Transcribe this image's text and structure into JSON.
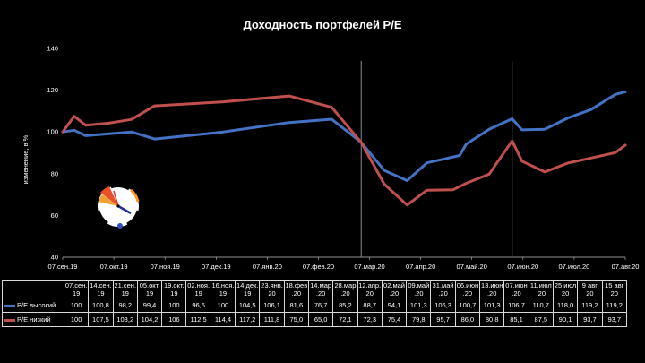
{
  "chart_data": {
    "type": "line",
    "title": "Доходность портфелей P/E",
    "ylabel": "изменение, в %",
    "xlabel": "",
    "ylim": [
      40,
      140
    ],
    "yticks": [
      40,
      60,
      80,
      100,
      120,
      140
    ],
    "grid": false,
    "x": [
      "07.сен.19",
      "14.сен.19",
      "21.сен.19",
      "05.окт.19",
      "19.окт.19",
      "02.ноя.19",
      "16.ноя.19",
      "14.дек.19",
      "23.янв.20",
      "18.фев.20",
      "14.мар.20",
      "28.мар.20",
      "12.апр.20",
      "02.май.20",
      "09.май.20",
      "31.май.20",
      "06.июн.20",
      "13.июн.20",
      "07.июн.20",
      "11.июл.20",
      "25.июл.20",
      "9.авг.20",
      "15.авг.20"
    ],
    "x_positions_days": [
      0,
      7,
      14,
      28,
      42,
      56,
      70,
      98,
      138,
      164,
      189,
      203,
      218,
      238,
      245,
      267,
      273,
      280,
      274,
      308,
      322,
      337,
      343
    ],
    "xtick_labels": [
      "07.сен.19",
      "07.окт.19",
      "07.ноя.19",
      "07.дек.19",
      "07.янв.20",
      "07.фев.20",
      "07.мар.20",
      "07.апр.20",
      "07.май.20",
      "07.июн.20",
      "07.июл.20",
      "07.авг.20"
    ],
    "series": [
      {
        "name": "P/E высокий",
        "color": "#4472c4",
        "values": [
          100,
          100.8,
          98.2,
          99.4,
          100,
          96.6,
          100,
          104.5,
          106.1,
          81.6,
          76.7,
          85.2,
          88.7,
          94.1,
          101.3,
          106.3,
          100.7,
          101.3,
          106.7,
          110.7,
          118.0,
          119.2,
          119.2
        ],
        "line_points": [
          [
            0,
            100
          ],
          [
            7,
            100.8
          ],
          [
            14,
            98.2
          ],
          [
            42,
            100
          ],
          [
            56,
            96.6
          ],
          [
            98,
            100
          ],
          [
            138,
            104.5
          ],
          [
            164,
            106.1
          ],
          [
            182,
            95
          ],
          [
            196,
            81.6
          ],
          [
            210,
            76.7
          ],
          [
            222,
            85.2
          ],
          [
            242,
            88.7
          ],
          [
            246,
            94.1
          ],
          [
            260,
            101.3
          ],
          [
            274,
            106.3
          ],
          [
            280,
            101
          ],
          [
            294,
            101.3
          ],
          [
            308,
            106.7
          ],
          [
            322,
            110.7
          ],
          [
            337,
            118.0
          ],
          [
            343,
            119.2
          ]
        ]
      },
      {
        "name": "P/E низкий",
        "color": "#c0504d",
        "values": [
          100,
          107.5,
          103.2,
          104.2,
          106,
          112.5,
          114.4,
          117.2,
          111.8,
          75.0,
          65.0,
          72.1,
          72.3,
          75.4,
          79.8,
          95.7,
          86.0,
          80.8,
          85.1,
          87.5,
          90.1,
          93.7,
          93.7
        ],
        "line_points": [
          [
            0,
            100
          ],
          [
            7,
            107.5
          ],
          [
            14,
            103.2
          ],
          [
            28,
            104.2
          ],
          [
            42,
            106
          ],
          [
            56,
            112.5
          ],
          [
            98,
            114.4
          ],
          [
            138,
            117.2
          ],
          [
            164,
            111.8
          ],
          [
            182,
            95
          ],
          [
            196,
            75.0
          ],
          [
            210,
            65.0
          ],
          [
            222,
            72.1
          ],
          [
            238,
            72.3
          ],
          [
            246,
            75.4
          ],
          [
            260,
            79.8
          ],
          [
            274,
            95.7
          ],
          [
            280,
            86.0
          ],
          [
            294,
            80.8
          ],
          [
            308,
            85.1
          ],
          [
            322,
            87.5
          ],
          [
            337,
            90.1
          ],
          [
            343,
            93.7
          ]
        ]
      }
    ],
    "vertical_markers_days": [
      182,
      274
    ]
  },
  "table": {
    "headers": [
      "07.сен.\n19",
      "14.сен.\n19",
      "21.сен.\n19",
      "05.окт.\n19",
      "19.окт.\n19",
      "02.ноя.\n19",
      "16.ноя.\n19",
      "14.дек.\n19",
      "23.янв.\n20",
      "18.фев\n.20",
      "14.мар\n.20",
      "28.мар\n.20",
      "12.апр.\n20",
      "02.май\n.20",
      "09.май\n.20",
      "31.май\n.20",
      "06.июн\n.20",
      "13.июн\n.20",
      "07.июн\n.20",
      "11.июл\n.20",
      "25 июл\n20",
      "9 авг\n20",
      "15 авг\n20"
    ],
    "rows": [
      {
        "label": "P/E высокий",
        "color": "#4472c4",
        "cells": [
          "100",
          "100,8",
          "98,2",
          "99,4",
          "100",
          "96,6",
          "100",
          "104,5",
          "106,1",
          "81,6",
          "76,7",
          "85,2",
          "88,7",
          "94,1",
          "101,3",
          "106,3",
          "100,7",
          "101,3",
          "106,7",
          "110,7",
          "118,0",
          "119,2",
          "119,2"
        ]
      },
      {
        "label": "P/E низкий",
        "color": "#c0504d",
        "cells": [
          "100",
          "107,5",
          "103,2",
          "104,2",
          "106",
          "112,5",
          "114,4",
          "117,2",
          "111,8",
          "75,0",
          "65,0",
          "72,1",
          "72,3",
          "75,4",
          "79,8",
          "95,7",
          "86,0",
          "80,8",
          "85,1",
          "87,5",
          "90,1",
          "93,7",
          "93,7"
        ]
      }
    ]
  },
  "logo_icon": "clock-logo-icon"
}
